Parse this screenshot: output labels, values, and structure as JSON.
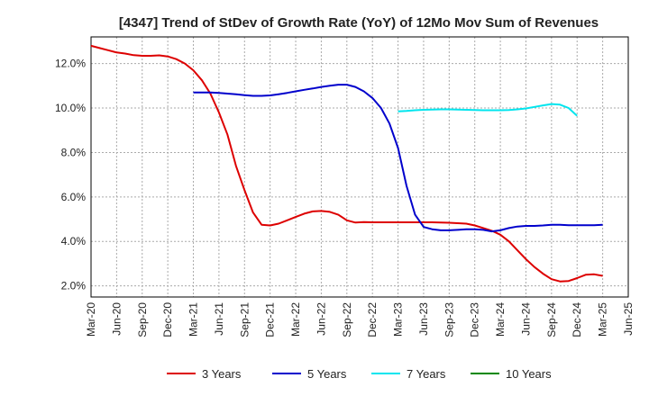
{
  "chart_data": {
    "type": "line",
    "title": "[4347]  Trend of StDev of Growth Rate (YoY) of 12Mo Mov Sum of Revenues",
    "xlabel": "",
    "ylabel": "",
    "x_tick_labels": [
      "Mar-20",
      "Jun-20",
      "Sep-20",
      "Dec-20",
      "Mar-21",
      "Jun-21",
      "Sep-21",
      "Dec-21",
      "Mar-22",
      "Jun-22",
      "Sep-22",
      "Dec-22",
      "Mar-23",
      "Jun-23",
      "Sep-23",
      "Dec-23",
      "Mar-24",
      "Jun-24",
      "Sep-24",
      "Dec-24",
      "Mar-25",
      "Jun-25"
    ],
    "y_ticks": [
      2.0,
      4.0,
      6.0,
      8.0,
      10.0,
      12.0
    ],
    "y_tick_labels": [
      "2.0%",
      "4.0%",
      "6.0%",
      "8.0%",
      "10.0%",
      "12.0%"
    ],
    "ylim": [
      1.5,
      13.2
    ],
    "grid": true,
    "legend_position": "bottom",
    "series": [
      {
        "name": "3 Years",
        "color": "#dd0000",
        "start_index": 0,
        "values": [
          12.8,
          12.7,
          12.6,
          12.5,
          12.45,
          12.38,
          12.35,
          12.35,
          12.37,
          12.32,
          12.2,
          12.0,
          11.7,
          11.25,
          10.65,
          9.8,
          8.8,
          7.4,
          6.3,
          5.3,
          4.75,
          4.72,
          4.8,
          4.95,
          5.1,
          5.25,
          5.35,
          5.37,
          5.33,
          5.2,
          4.95,
          4.85,
          4.87,
          4.86,
          4.86,
          4.86,
          4.86,
          4.86,
          4.86,
          4.86,
          4.86,
          4.85,
          4.84,
          4.82,
          4.8,
          4.72,
          4.6,
          4.48,
          4.3,
          4.0,
          3.6,
          3.2,
          2.85,
          2.55,
          2.3,
          2.2,
          2.22,
          2.35,
          2.5,
          2.52,
          2.45
        ]
      },
      {
        "name": "5 Years",
        "color": "#0000cc",
        "start_index": 12,
        "values": [
          10.7,
          10.7,
          10.7,
          10.68,
          10.65,
          10.62,
          10.58,
          10.55,
          10.55,
          10.57,
          10.62,
          10.68,
          10.75,
          10.82,
          10.88,
          10.95,
          11.0,
          11.05,
          11.05,
          10.95,
          10.75,
          10.45,
          10.0,
          9.3,
          8.2,
          6.5,
          5.2,
          4.65,
          4.55,
          4.5,
          4.5,
          4.52,
          4.55,
          4.55,
          4.52,
          4.45,
          4.5,
          4.6,
          4.67,
          4.7,
          4.7,
          4.72,
          4.75,
          4.75,
          4.73,
          4.73,
          4.73,
          4.73,
          4.75
        ]
      },
      {
        "name": "7 Years",
        "color": "#00e5ee",
        "start_index": 36,
        "values": [
          9.85,
          9.87,
          9.9,
          9.92,
          9.93,
          9.94,
          9.94,
          9.93,
          9.92,
          9.91,
          9.9,
          9.9,
          9.9,
          9.91,
          9.94,
          9.98,
          10.05,
          10.12,
          10.18,
          10.15,
          10.0,
          9.65
        ]
      },
      {
        "name": "10 Years",
        "color": "#008800",
        "start_index": 0,
        "values": []
      }
    ]
  }
}
